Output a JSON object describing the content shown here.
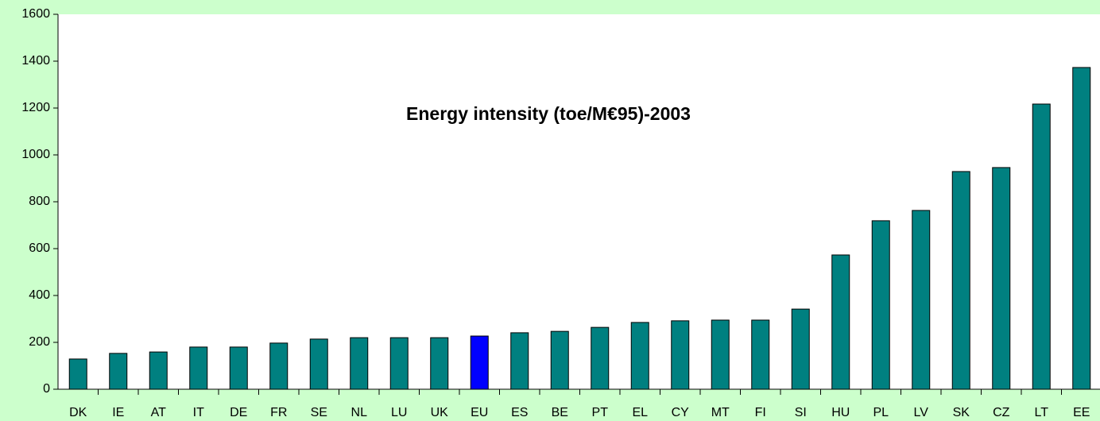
{
  "chart_data": {
    "type": "bar",
    "title": "Energy intensity (toe/M€95)-2003",
    "categories": [
      "DK",
      "IE",
      "AT",
      "IT",
      "DE",
      "FR",
      "SE",
      "NL",
      "LU",
      "UK",
      "EU",
      "ES",
      "BE",
      "PT",
      "EL",
      "CY",
      "MT",
      "FI",
      "SI",
      "HU",
      "PL",
      "LV",
      "SK",
      "CZ",
      "LT",
      "EE"
    ],
    "values": [
      129,
      153,
      159,
      180,
      180,
      197,
      214,
      220,
      220,
      220,
      227,
      241,
      247,
      264,
      285,
      292,
      295,
      295,
      342,
      573,
      719,
      763,
      929,
      946,
      1217,
      1373
    ],
    "colors": [
      "#008080",
      "#008080",
      "#008080",
      "#008080",
      "#008080",
      "#008080",
      "#008080",
      "#008080",
      "#008080",
      "#008080",
      "#0000ff",
      "#008080",
      "#008080",
      "#008080",
      "#008080",
      "#008080",
      "#008080",
      "#008080",
      "#008080",
      "#008080",
      "#008080",
      "#008080",
      "#008080",
      "#008080",
      "#008080",
      "#008080"
    ],
    "ylim": [
      0,
      1600
    ],
    "yticks": [
      0,
      200,
      400,
      600,
      800,
      1000,
      1200,
      1400,
      1600
    ],
    "grid": false
  }
}
